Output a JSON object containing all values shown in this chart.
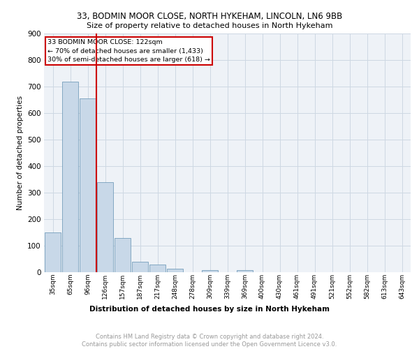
{
  "title1": "33, BODMIN MOOR CLOSE, NORTH HYKEHAM, LINCOLN, LN6 9BB",
  "title2": "Size of property relative to detached houses in North Hykeham",
  "xlabel": "Distribution of detached houses by size in North Hykeham",
  "ylabel": "Number of detached properties",
  "footnote": "Contains HM Land Registry data © Crown copyright and database right 2024.\nContains public sector information licensed under the Open Government Licence v3.0.",
  "categories": [
    "35sqm",
    "65sqm",
    "96sqm",
    "126sqm",
    "157sqm",
    "187sqm",
    "217sqm",
    "248sqm",
    "278sqm",
    "309sqm",
    "339sqm",
    "369sqm",
    "400sqm",
    "430sqm",
    "461sqm",
    "491sqm",
    "521sqm",
    "552sqm",
    "582sqm",
    "613sqm",
    "643sqm"
  ],
  "values": [
    150,
    718,
    655,
    338,
    130,
    40,
    30,
    12,
    0,
    8,
    0,
    8,
    0,
    0,
    0,
    0,
    0,
    0,
    0,
    0,
    0
  ],
  "bar_color": "#c8d8e8",
  "bar_edge_color": "#6090b0",
  "vline_color": "#cc0000",
  "vline_x_index": 2.5,
  "annotation_lines": [
    "33 BODMIN MOOR CLOSE: 122sqm",
    "← 70% of detached houses are smaller (1,433)",
    "30% of semi-detached houses are larger (618) →"
  ],
  "annotation_box_color": "#cc0000",
  "ylim": [
    0,
    900
  ],
  "yticks": [
    0,
    100,
    200,
    300,
    400,
    500,
    600,
    700,
    800,
    900
  ],
  "grid_color": "#cdd8e3",
  "background_color": "#eef2f7"
}
